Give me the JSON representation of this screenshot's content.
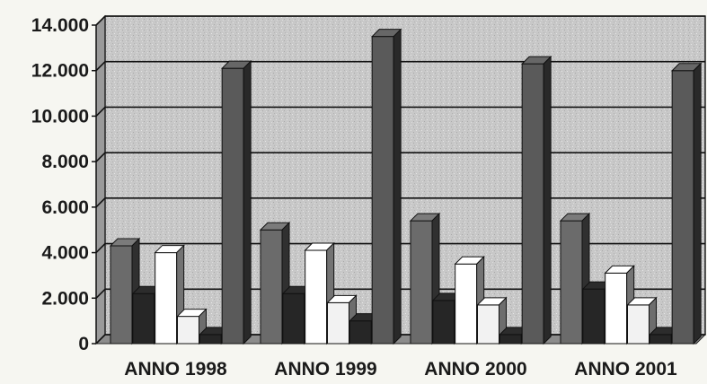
{
  "chart_data": {
    "type": "bar",
    "title": "",
    "xlabel": "",
    "ylabel": "",
    "categories": [
      "ANNO 1998",
      "ANNO 1999",
      "ANNO 2000",
      "ANNO 2001"
    ],
    "ylim": [
      0,
      14000
    ],
    "yticks": [
      0,
      2000,
      4000,
      6000,
      8000,
      10000,
      12000,
      14000
    ],
    "ytick_labels": [
      "0",
      "2.000",
      "4.000",
      "6.000",
      "8.000",
      "10.000",
      "12.000",
      "14.000"
    ],
    "grid": true,
    "legend": "none",
    "three_d": true,
    "series": [
      {
        "values": [
          4300,
          5000,
          5400,
          5400
        ],
        "color": "#6b6b6b"
      },
      {
        "values": [
          2200,
          2200,
          1900,
          2400
        ],
        "color": "#262626"
      },
      {
        "values": [
          4000,
          4100,
          3500,
          3100
        ],
        "color": "#ffffff"
      },
      {
        "values": [
          1200,
          1800,
          1700,
          1700
        ],
        "color": "#f2f2f2"
      },
      {
        "values": [
          400,
          1000,
          400,
          400
        ],
        "color": "#262626"
      },
      {
        "values": [
          12100,
          13500,
          12300,
          12000
        ],
        "color": "#5a5a5a"
      }
    ]
  }
}
